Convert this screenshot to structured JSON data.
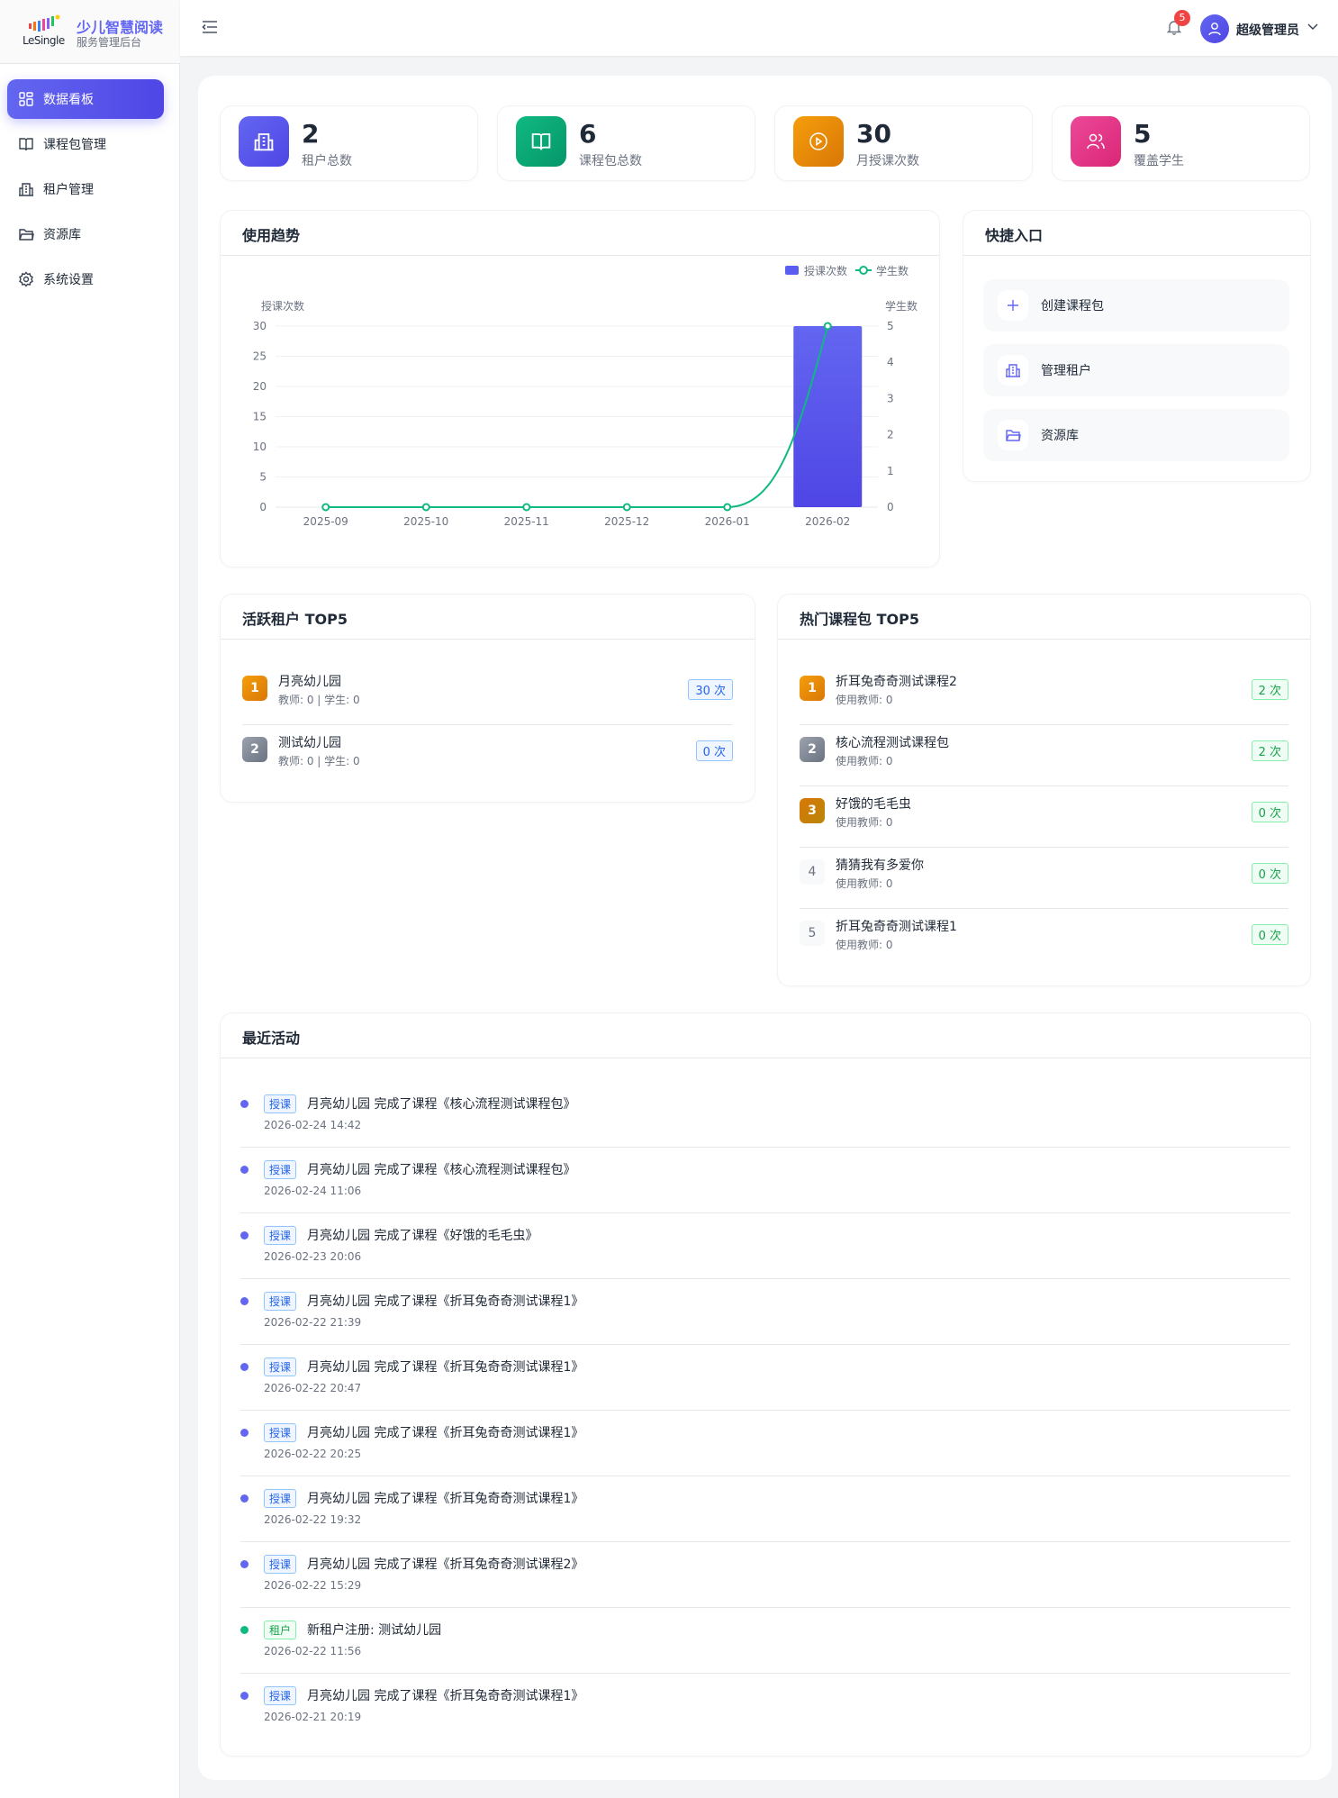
{
  "brand": {
    "logo_text": "LeSingle",
    "title": "少儿智慧阅读",
    "subtitle": "服务管理后台"
  },
  "sidebar": {
    "items": [
      {
        "label": "数据看板",
        "icon": "dashboard-icon",
        "active": true
      },
      {
        "label": "课程包管理",
        "icon": "book-icon"
      },
      {
        "label": "租户管理",
        "icon": "building-icon"
      },
      {
        "label": "资源库",
        "icon": "folder-icon"
      },
      {
        "label": "系统设置",
        "icon": "gear-icon"
      }
    ]
  },
  "header": {
    "notification_count": "5",
    "user": "超级管理员"
  },
  "stats": [
    {
      "value": "2",
      "label": "租户总数",
      "color": "#4f46e5"
    },
    {
      "value": "6",
      "label": "课程包总数",
      "color": "#059669"
    },
    {
      "value": "30",
      "label": "月授课次数",
      "color": "#d97706"
    },
    {
      "value": "5",
      "label": "覆盖学生",
      "color": "#db2777"
    }
  ],
  "trend": {
    "title": "使用趋势"
  },
  "chart_data": {
    "type": "bar+line",
    "categories": [
      "2025-09",
      "2025-10",
      "2025-11",
      "2025-12",
      "2026-01",
      "2026-02"
    ],
    "series": [
      {
        "name": "授课次数",
        "type": "bar",
        "axis": "left",
        "color": "#5b5cf0",
        "values": [
          0,
          0,
          0,
          0,
          0,
          30
        ]
      },
      {
        "name": "学生数",
        "type": "line",
        "axis": "right",
        "color": "#10b981",
        "values": [
          0,
          0,
          0,
          0,
          0,
          5
        ]
      }
    ],
    "ylabel_left": "授课次数",
    "ylabel_right": "学生数",
    "ylim_left": [
      0,
      30
    ],
    "ylim_right": [
      0,
      5
    ],
    "yticks_left": [
      "0",
      "5",
      "10",
      "15",
      "20",
      "25",
      "30"
    ],
    "yticks_right": [
      "0",
      "1",
      "2",
      "3",
      "4",
      "5"
    ],
    "grid": true,
    "legend": "top-right"
  },
  "quick": {
    "title": "快捷入口",
    "items": [
      {
        "label": "创建课程包",
        "icon": "plus-icon"
      },
      {
        "label": "管理租户",
        "icon": "building-icon"
      },
      {
        "label": "资源库",
        "icon": "folder-icon"
      }
    ]
  },
  "tenants": {
    "title": "活跃租户 TOP5",
    "items": [
      {
        "rank": "1",
        "name": "月亮幼儿园",
        "sub": "教师: 0 | 学生: 0",
        "count": "30 次"
      },
      {
        "rank": "2",
        "name": "测试幼儿园",
        "sub": "教师: 0 | 学生: 0",
        "count": "0 次"
      }
    ]
  },
  "courses": {
    "title": "热门课程包 TOP5",
    "items": [
      {
        "rank": "1",
        "name": "折耳兔奇奇测试课程2",
        "sub": "使用教师: 0",
        "count": "2 次"
      },
      {
        "rank": "2",
        "name": "核心流程测试课程包",
        "sub": "使用教师: 0",
        "count": "2 次"
      },
      {
        "rank": "3",
        "name": "好饿的毛毛虫",
        "sub": "使用教师: 0",
        "count": "0 次"
      },
      {
        "rank": "4",
        "name": "猜猜我有多爱你",
        "sub": "使用教师: 0",
        "count": "0 次"
      },
      {
        "rank": "5",
        "name": "折耳兔奇奇测试课程1",
        "sub": "使用教师: 0",
        "count": "0 次"
      }
    ]
  },
  "activity": {
    "title": "最近活动",
    "items": [
      {
        "tag": "授课",
        "type": "class",
        "text": "月亮幼儿园 完成了课程《核心流程测试课程包》",
        "time": "2026-02-24 14:42"
      },
      {
        "tag": "授课",
        "type": "class",
        "text": "月亮幼儿园 完成了课程《核心流程测试课程包》",
        "time": "2026-02-24 11:06"
      },
      {
        "tag": "授课",
        "type": "class",
        "text": "月亮幼儿园 完成了课程《好饿的毛毛虫》",
        "time": "2026-02-23 20:06"
      },
      {
        "tag": "授课",
        "type": "class",
        "text": "月亮幼儿园 完成了课程《折耳兔奇奇测试课程1》",
        "time": "2026-02-22 21:39"
      },
      {
        "tag": "授课",
        "type": "class",
        "text": "月亮幼儿园 完成了课程《折耳兔奇奇测试课程1》",
        "time": "2026-02-22 20:47"
      },
      {
        "tag": "授课",
        "type": "class",
        "text": "月亮幼儿园 完成了课程《折耳兔奇奇测试课程1》",
        "time": "2026-02-22 20:25"
      },
      {
        "tag": "授课",
        "type": "class",
        "text": "月亮幼儿园 完成了课程《折耳兔奇奇测试课程1》",
        "time": "2026-02-22 19:32"
      },
      {
        "tag": "授课",
        "type": "class",
        "text": "月亮幼儿园 完成了课程《折耳兔奇奇测试课程2》",
        "time": "2026-02-22 15:29"
      },
      {
        "tag": "租户",
        "type": "tenant",
        "text": "新租户注册: 测试幼儿园",
        "time": "2026-02-22 11:56"
      },
      {
        "tag": "授课",
        "type": "class",
        "text": "月亮幼儿园 完成了课程《折耳兔奇奇测试课程1》",
        "time": "2026-02-21 20:19"
      }
    ]
  }
}
